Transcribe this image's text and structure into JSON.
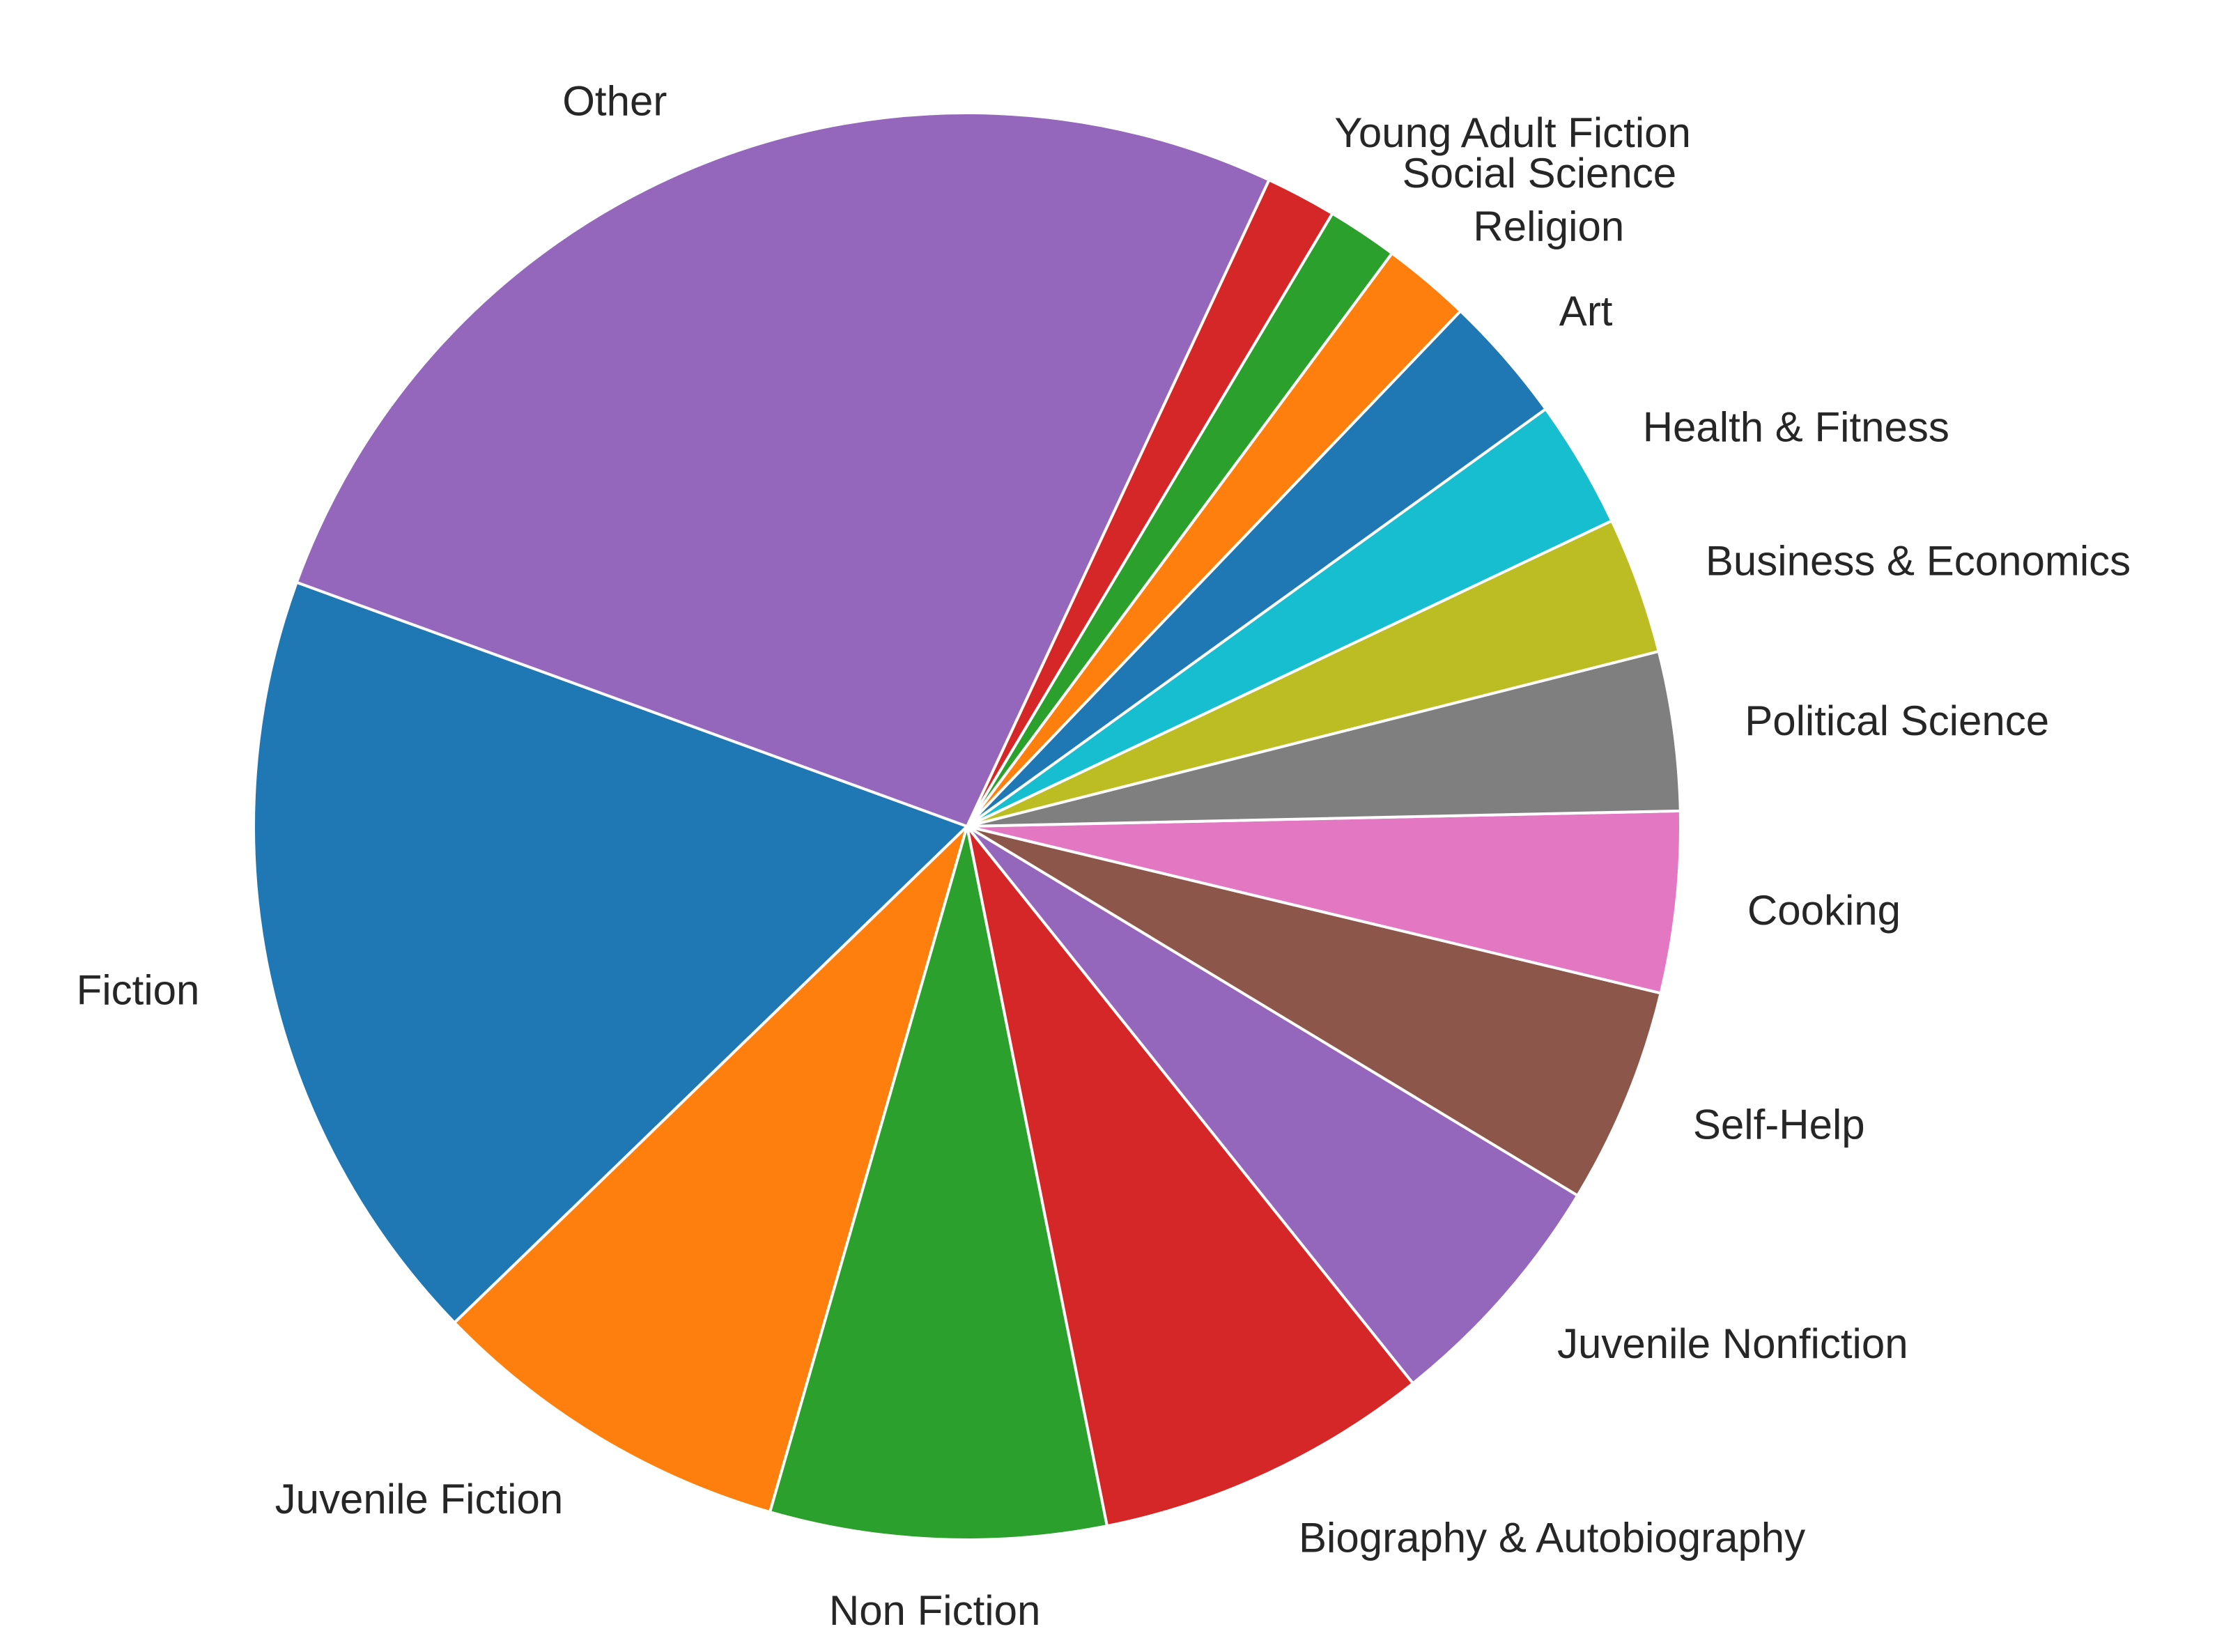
{
  "chart_data": {
    "type": "pie",
    "title": "",
    "slices": [
      {
        "label": "Fiction",
        "value": 17.8,
        "color": "#1f77b4"
      },
      {
        "label": "Juvenile Fiction",
        "value": 8.3,
        "color": "#ff7f0e"
      },
      {
        "label": "Non Fiction",
        "value": 7.6,
        "color": "#2ca02c"
      },
      {
        "label": "Biography & Autobiography",
        "value": 7.6,
        "color": "#d62728"
      },
      {
        "label": "Juvenile Nonfiction",
        "value": 5.6,
        "color": "#9467bd"
      },
      {
        "label": "Self-Help",
        "value": 4.9,
        "color": "#8c564b"
      },
      {
        "label": "Cooking",
        "value": 4.1,
        "color": "#e377c2"
      },
      {
        "label": "Political Science",
        "value": 3.6,
        "color": "#7f7f7f"
      },
      {
        "label": "Business & Economics",
        "value": 3.1,
        "color": "#bcbd22"
      },
      {
        "label": "Health & Fitness",
        "value": 2.9,
        "color": "#17becf"
      },
      {
        "label": "Art",
        "value": 2.9,
        "color": "#1f77b4"
      },
      {
        "label": "Religion",
        "value": 2.0,
        "color": "#ff7f0e"
      },
      {
        "label": "Social Science",
        "value": 1.6,
        "color": "#2ca02c"
      },
      {
        "label": "Young Adult Fiction",
        "value": 1.6,
        "color": "#d62728"
      },
      {
        "label": "Other",
        "value": 26.4,
        "color": "#9467bd"
      }
    ],
    "start_angle_deg": 160,
    "direction": "counterclockwise",
    "legend": "none",
    "slice_edge_color": "#ffffff"
  }
}
